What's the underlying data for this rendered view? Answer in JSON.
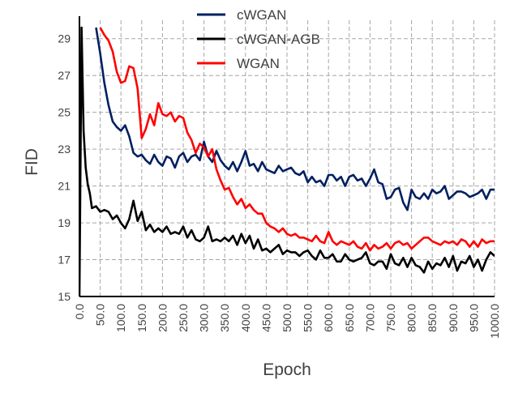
{
  "chart_data": {
    "type": "line",
    "xlabel": "Epoch",
    "ylabel": "FID",
    "xlim": [
      0,
      1000
    ],
    "ylim": [
      15,
      30
    ],
    "x_ticks": [
      "0.0",
      "50.0",
      "100.0",
      "150.0",
      "200.0",
      "250.0",
      "300.0",
      "350.0",
      "400.0",
      "450.0",
      "500.0",
      "550.0",
      "600.0",
      "650.0",
      "700.0",
      "750.0",
      "800.0",
      "850.0",
      "900.0",
      "950.0",
      "1000.0"
    ],
    "y_ticks": [
      "15",
      "17",
      "19",
      "21",
      "23",
      "25",
      "27",
      "29"
    ],
    "grid": true,
    "legend_position": "top-center",
    "series": [
      {
        "name": "cWGAN",
        "color": "#002060",
        "x": [
          40,
          50,
          60,
          70,
          80,
          90,
          100,
          110,
          120,
          130,
          140,
          150,
          160,
          170,
          180,
          190,
          200,
          210,
          220,
          230,
          240,
          250,
          260,
          270,
          280,
          290,
          300,
          310,
          320,
          330,
          340,
          350,
          360,
          370,
          380,
          390,
          400,
          410,
          420,
          430,
          440,
          450,
          460,
          470,
          480,
          490,
          500,
          510,
          520,
          530,
          540,
          550,
          560,
          570,
          580,
          590,
          600,
          610,
          620,
          630,
          640,
          650,
          660,
          670,
          680,
          690,
          700,
          710,
          720,
          730,
          740,
          750,
          760,
          770,
          780,
          790,
          800,
          810,
          820,
          830,
          840,
          850,
          860,
          870,
          880,
          890,
          900,
          910,
          920,
          930,
          940,
          950,
          960,
          970,
          980,
          990,
          1000
        ],
        "values": [
          29.6,
          28.2,
          26.6,
          25.4,
          24.5,
          24.2,
          24.0,
          24.3,
          23.7,
          22.8,
          22.6,
          22.7,
          22.4,
          22.2,
          22.7,
          22.3,
          22.1,
          22.6,
          22.5,
          22.0,
          22.6,
          22.8,
          22.3,
          22.6,
          22.7,
          22.4,
          23.4,
          22.6,
          22.3,
          22.9,
          22.4,
          22.1,
          21.9,
          22.3,
          21.8,
          22.3,
          22.9,
          22.1,
          22.2,
          21.8,
          22.3,
          21.9,
          21.8,
          21.7,
          22.1,
          21.8,
          21.9,
          22.0,
          21.7,
          21.6,
          21.8,
          21.2,
          21.5,
          21.2,
          21.3,
          21.0,
          21.6,
          21.6,
          21.3,
          21.5,
          21.0,
          21.5,
          21.6,
          21.3,
          21.4,
          21.0,
          21.4,
          21.9,
          21.2,
          21.1,
          20.3,
          20.4,
          20.8,
          20.9,
          20.1,
          19.7,
          20.8,
          20.4,
          20.3,
          20.6,
          20.3,
          20.8,
          20.6,
          20.7,
          21.0,
          20.3,
          20.5,
          20.7,
          20.7,
          20.6,
          20.4,
          20.5,
          20.6,
          20.8,
          20.3,
          20.8,
          20.8
        ]
      },
      {
        "name": "cWGAN-AGB",
        "color": "#000000",
        "x": [
          0,
          5,
          10,
          15,
          20,
          25,
          30,
          40,
          50,
          60,
          70,
          80,
          90,
          100,
          110,
          120,
          130,
          140,
          150,
          160,
          170,
          180,
          190,
          200,
          210,
          220,
          230,
          240,
          250,
          260,
          270,
          280,
          290,
          300,
          310,
          320,
          330,
          340,
          350,
          360,
          370,
          380,
          390,
          400,
          410,
          420,
          430,
          440,
          450,
          460,
          470,
          480,
          490,
          500,
          510,
          520,
          530,
          540,
          550,
          560,
          570,
          580,
          590,
          600,
          610,
          620,
          630,
          640,
          650,
          660,
          670,
          680,
          690,
          700,
          710,
          720,
          730,
          740,
          750,
          760,
          770,
          780,
          790,
          800,
          810,
          820,
          830,
          840,
          850,
          860,
          870,
          880,
          890,
          900,
          910,
          920,
          930,
          940,
          950,
          960,
          970,
          980,
          990,
          1000
        ],
        "values": [
          15.0,
          29.6,
          24.0,
          22.0,
          21.1,
          20.6,
          19.8,
          19.9,
          19.6,
          19.7,
          19.6,
          19.2,
          19.4,
          19.0,
          18.7,
          19.2,
          20.2,
          19.1,
          19.6,
          18.6,
          18.9,
          18.5,
          18.7,
          18.5,
          18.8,
          18.4,
          18.5,
          18.4,
          18.8,
          18.2,
          18.6,
          18.1,
          18.0,
          18.2,
          18.8,
          18.0,
          18.1,
          18.0,
          18.2,
          18.0,
          18.3,
          17.8,
          18.4,
          17.9,
          18.3,
          17.6,
          18.1,
          17.5,
          17.6,
          17.4,
          17.6,
          17.8,
          17.3,
          17.5,
          17.4,
          17.4,
          17.2,
          17.4,
          17.5,
          17.2,
          17.0,
          17.5,
          17.1,
          17.1,
          17.3,
          16.9,
          16.9,
          17.3,
          17.0,
          16.9,
          17.0,
          17.1,
          17.4,
          16.8,
          16.7,
          16.9,
          16.9,
          16.5,
          17.3,
          16.8,
          16.7,
          17.1,
          16.6,
          17.1,
          16.7,
          16.6,
          16.3,
          16.9,
          16.5,
          16.8,
          16.7,
          17.1,
          16.6,
          17.2,
          16.4,
          16.9,
          16.8,
          17.2,
          16.6,
          17.0,
          16.4,
          17.0,
          17.4,
          17.2
        ]
      },
      {
        "name": "WGAN",
        "color": "#ff0000",
        "x": [
          50,
          60,
          70,
          80,
          90,
          100,
          110,
          120,
          130,
          140,
          150,
          160,
          170,
          180,
          190,
          200,
          210,
          220,
          230,
          240,
          250,
          260,
          270,
          280,
          290,
          300,
          310,
          320,
          330,
          340,
          350,
          360,
          370,
          380,
          390,
          400,
          410,
          420,
          430,
          440,
          450,
          460,
          470,
          480,
          490,
          500,
          510,
          520,
          530,
          540,
          550,
          560,
          570,
          580,
          590,
          600,
          610,
          620,
          630,
          640,
          650,
          660,
          670,
          680,
          690,
          700,
          710,
          720,
          730,
          740,
          750,
          760,
          770,
          780,
          790,
          800,
          810,
          820,
          830,
          840,
          850,
          860,
          870,
          880,
          890,
          900,
          910,
          920,
          930,
          940,
          950,
          960,
          970,
          980,
          990,
          1000
        ],
        "values": [
          29.6,
          29.2,
          28.9,
          28.3,
          27.2,
          26.6,
          26.7,
          27.5,
          27.4,
          26.3,
          23.6,
          24.1,
          24.9,
          24.3,
          25.5,
          24.9,
          24.8,
          25.0,
          24.5,
          24.8,
          24.7,
          23.9,
          23.5,
          22.8,
          23.3,
          23.1,
          22.6,
          23.0,
          21.9,
          21.3,
          20.8,
          20.9,
          20.4,
          20.0,
          20.3,
          19.8,
          20.0,
          19.7,
          19.5,
          19.5,
          19.0,
          18.8,
          18.7,
          18.5,
          18.7,
          18.4,
          18.3,
          18.4,
          18.2,
          18.2,
          18.1,
          18.0,
          18.3,
          18.0,
          17.9,
          18.5,
          18.0,
          17.8,
          18.0,
          17.9,
          17.8,
          18.0,
          17.7,
          17.6,
          17.9,
          17.5,
          17.8,
          17.6,
          17.7,
          17.9,
          17.6,
          17.9,
          18.0,
          17.8,
          17.9,
          17.6,
          17.8,
          18.0,
          18.2,
          18.2,
          18.0,
          17.9,
          17.8,
          18.0,
          17.9,
          18.0,
          17.8,
          18.1,
          18.0,
          17.7,
          18.0,
          17.7,
          18.1,
          17.9,
          18.0,
          18.0
        ]
      }
    ]
  }
}
